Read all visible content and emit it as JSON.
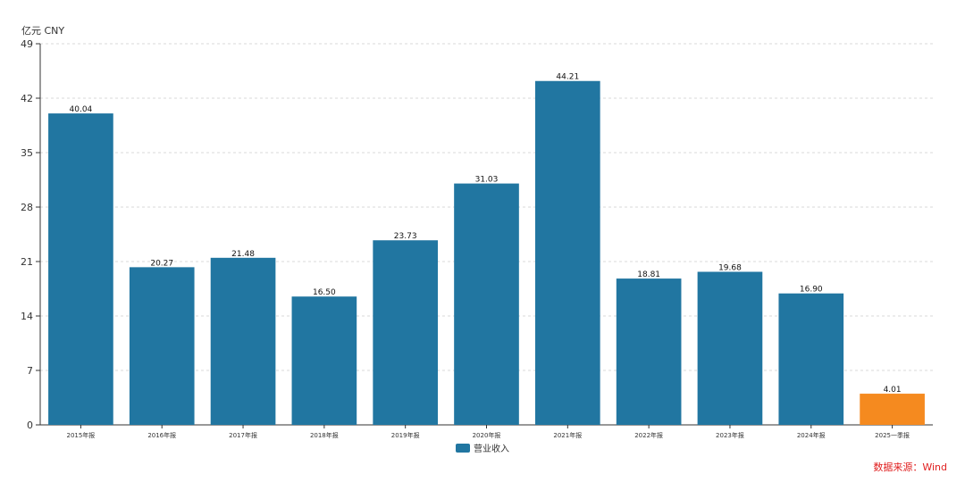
{
  "chart_data": {
    "type": "bar",
    "y_unit": "亿元  CNY",
    "categories": [
      "2015年报",
      "2016年报",
      "2017年报",
      "2018年报",
      "2019年报",
      "2020年报",
      "2021年报",
      "2022年报",
      "2023年报",
      "2024年报",
      "2025一季报"
    ],
    "series": [
      {
        "name": "营业收入",
        "values": [
          40.04,
          20.27,
          21.48,
          16.5,
          23.73,
          31.03,
          44.21,
          18.81,
          19.68,
          16.9,
          4.01
        ],
        "data_labels": [
          "40.04",
          "20.27",
          "21.48",
          "16.50",
          "23.73",
          "31.03",
          "44.21",
          "18.81",
          "19.68",
          "16.90",
          "4.01"
        ]
      }
    ],
    "ylim": [
      0,
      49
    ],
    "yticks": [
      "0",
      "7",
      "14",
      "21",
      "28",
      "35",
      "42",
      "49"
    ],
    "grid": true,
    "legend_position": "bottom-center",
    "highlight_last_bar": true,
    "colors": {
      "bar": "#2176a1",
      "highlight": "#f58a1f",
      "grid": "#d9d9d9",
      "axis": "#333333"
    },
    "source": "数据来源：Wind"
  }
}
